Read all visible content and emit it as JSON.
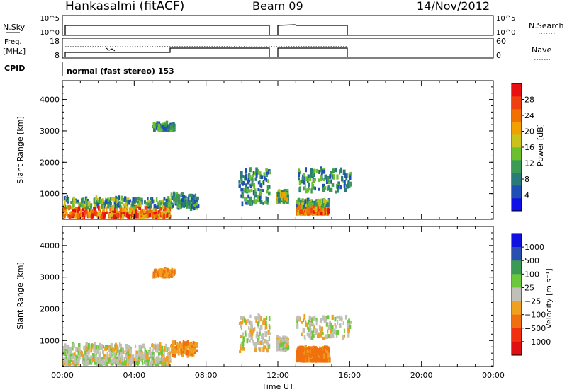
{
  "header": {
    "station": "Hankasalmi (fitACF)",
    "beam": "Beam 09",
    "date": "14/Nov/2012"
  },
  "top_panels": {
    "noise": {
      "label_left": "N.Sky",
      "left_ticks": [
        "10^5",
        "10^0"
      ],
      "label_right": "N.Search",
      "right_ticks": [
        "10^5",
        "10^0"
      ]
    },
    "freq": {
      "label_left_line1": "Freq.",
      "label_left_line2": "[MHz]",
      "left_ticks": [
        "18",
        "8"
      ],
      "label_right": "Nave",
      "right_ticks": [
        "60",
        "0"
      ]
    },
    "cpid": {
      "label": "CPID",
      "text": "normal (fast stereo) 153"
    }
  },
  "chart_data": [
    {
      "type": "heatmap",
      "name": "power",
      "ylabel": "Slant Range [km]",
      "y_ticks": [
        1000,
        2000,
        3000,
        4000
      ],
      "ylim": [
        180,
        4600
      ],
      "x_ticks": [
        "00:00",
        "04:00",
        "08:00",
        "12:00",
        "16:00",
        "20:00",
        "00:00"
      ],
      "xlim_hours": [
        0,
        24
      ],
      "colorbar": {
        "label": "Power [dB]",
        "ticks": [
          "4",
          "8",
          "12",
          "16",
          "20",
          "24",
          "28"
        ],
        "colors": [
          "#1010e8",
          "#1f4fb4",
          "#2a7a7a",
          "#3c9a55",
          "#6cc030",
          "#c9c21a",
          "#f0a000",
          "#f07000",
          "#f04010",
          "#e81010"
        ]
      },
      "data_gap_hours": [
        [
          11.55,
          11.8
        ],
        [
          16.0,
          24.0
        ]
      ],
      "scatter_regions": [
        {
          "t": [
            0.0,
            6.0
          ],
          "r": [
            200,
            800
          ],
          "level": "strong"
        },
        {
          "t": [
            6.0,
            7.5
          ],
          "r": [
            450,
            900
          ],
          "level": "weak"
        },
        {
          "t": [
            5.0,
            6.2
          ],
          "r": [
            2950,
            3150
          ],
          "level": "weak"
        },
        {
          "t": [
            9.8,
            11.5
          ],
          "r": [
            600,
            1700
          ],
          "level": "weak"
        },
        {
          "t": [
            11.9,
            12.5
          ],
          "r": [
            650,
            1000
          ],
          "level": "medium"
        },
        {
          "t": [
            13.0,
            14.8
          ],
          "r": [
            300,
            700
          ],
          "level": "strong"
        },
        {
          "t": [
            13.0,
            16.0
          ],
          "r": [
            1000,
            1700
          ],
          "level": "weak"
        }
      ]
    },
    {
      "type": "heatmap",
      "name": "velocity",
      "ylabel": "Slant Range [km]",
      "y_ticks": [
        1000,
        2000,
        3000,
        4000
      ],
      "ylim": [
        180,
        4600
      ],
      "x_ticks": [
        "00:00",
        "04:00",
        "08:00",
        "12:00",
        "16:00",
        "20:00",
        "00:00"
      ],
      "xlabel": "Time UT",
      "xlim_hours": [
        0,
        24
      ],
      "colorbar": {
        "label": "Velocity [m s⁻¹]",
        "ticks": [
          "1000",
          "500",
          "100",
          "25",
          "−25",
          "−100",
          "−500",
          "−1000"
        ],
        "colors": [
          "#1010e0",
          "#2a4fb0",
          "#3c9a55",
          "#6ac83a",
          "#c0c0b8",
          "#f0a020",
          "#f07010",
          "#f03010",
          "#e01010"
        ]
      },
      "data_gap_hours": [
        [
          11.55,
          11.8
        ],
        [
          16.0,
          24.0
        ]
      ]
    }
  ]
}
